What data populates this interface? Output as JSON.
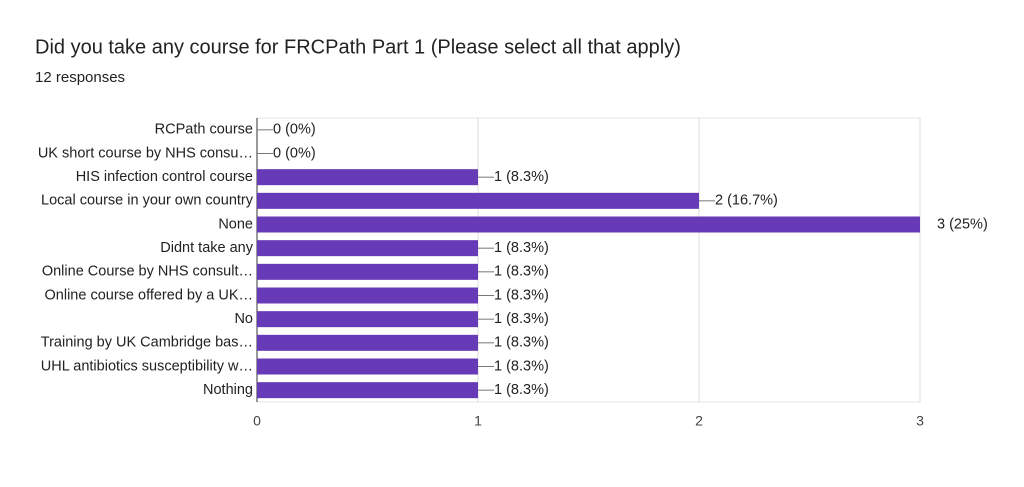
{
  "chart_data": {
    "type": "bar",
    "orientation": "horizontal",
    "title": "Did you take any course for FRCPath Part 1 (Please select all that apply)",
    "subtitle": "12 responses",
    "categories": [
      "RCPath course",
      "UK short course by NHS consu…",
      "HIS infection control course",
      "Local course in your own country",
      "None",
      "Didnt take any",
      "Online Course by NHS consult…",
      "Online course offered by a UK…",
      "No",
      "Training by UK Cambridge bas…",
      "UHL antibiotics susceptibility w…",
      "Nothing"
    ],
    "values": [
      0,
      0,
      1,
      2,
      3,
      1,
      1,
      1,
      1,
      1,
      1,
      1
    ],
    "value_labels": [
      "0 (0%)",
      "0 (0%)",
      "1 (8.3%)",
      "2 (16.7%)",
      "3 (25%)",
      "1 (8.3%)",
      "1 (8.3%)",
      "1 (8.3%)",
      "1 (8.3%)",
      "1 (8.3%)",
      "1 (8.3%)",
      "1 (8.3%)"
    ],
    "color": "#673ab7",
    "xlim": [
      0,
      3
    ],
    "xticks": [
      0,
      1,
      2,
      3
    ],
    "grid": true
  }
}
